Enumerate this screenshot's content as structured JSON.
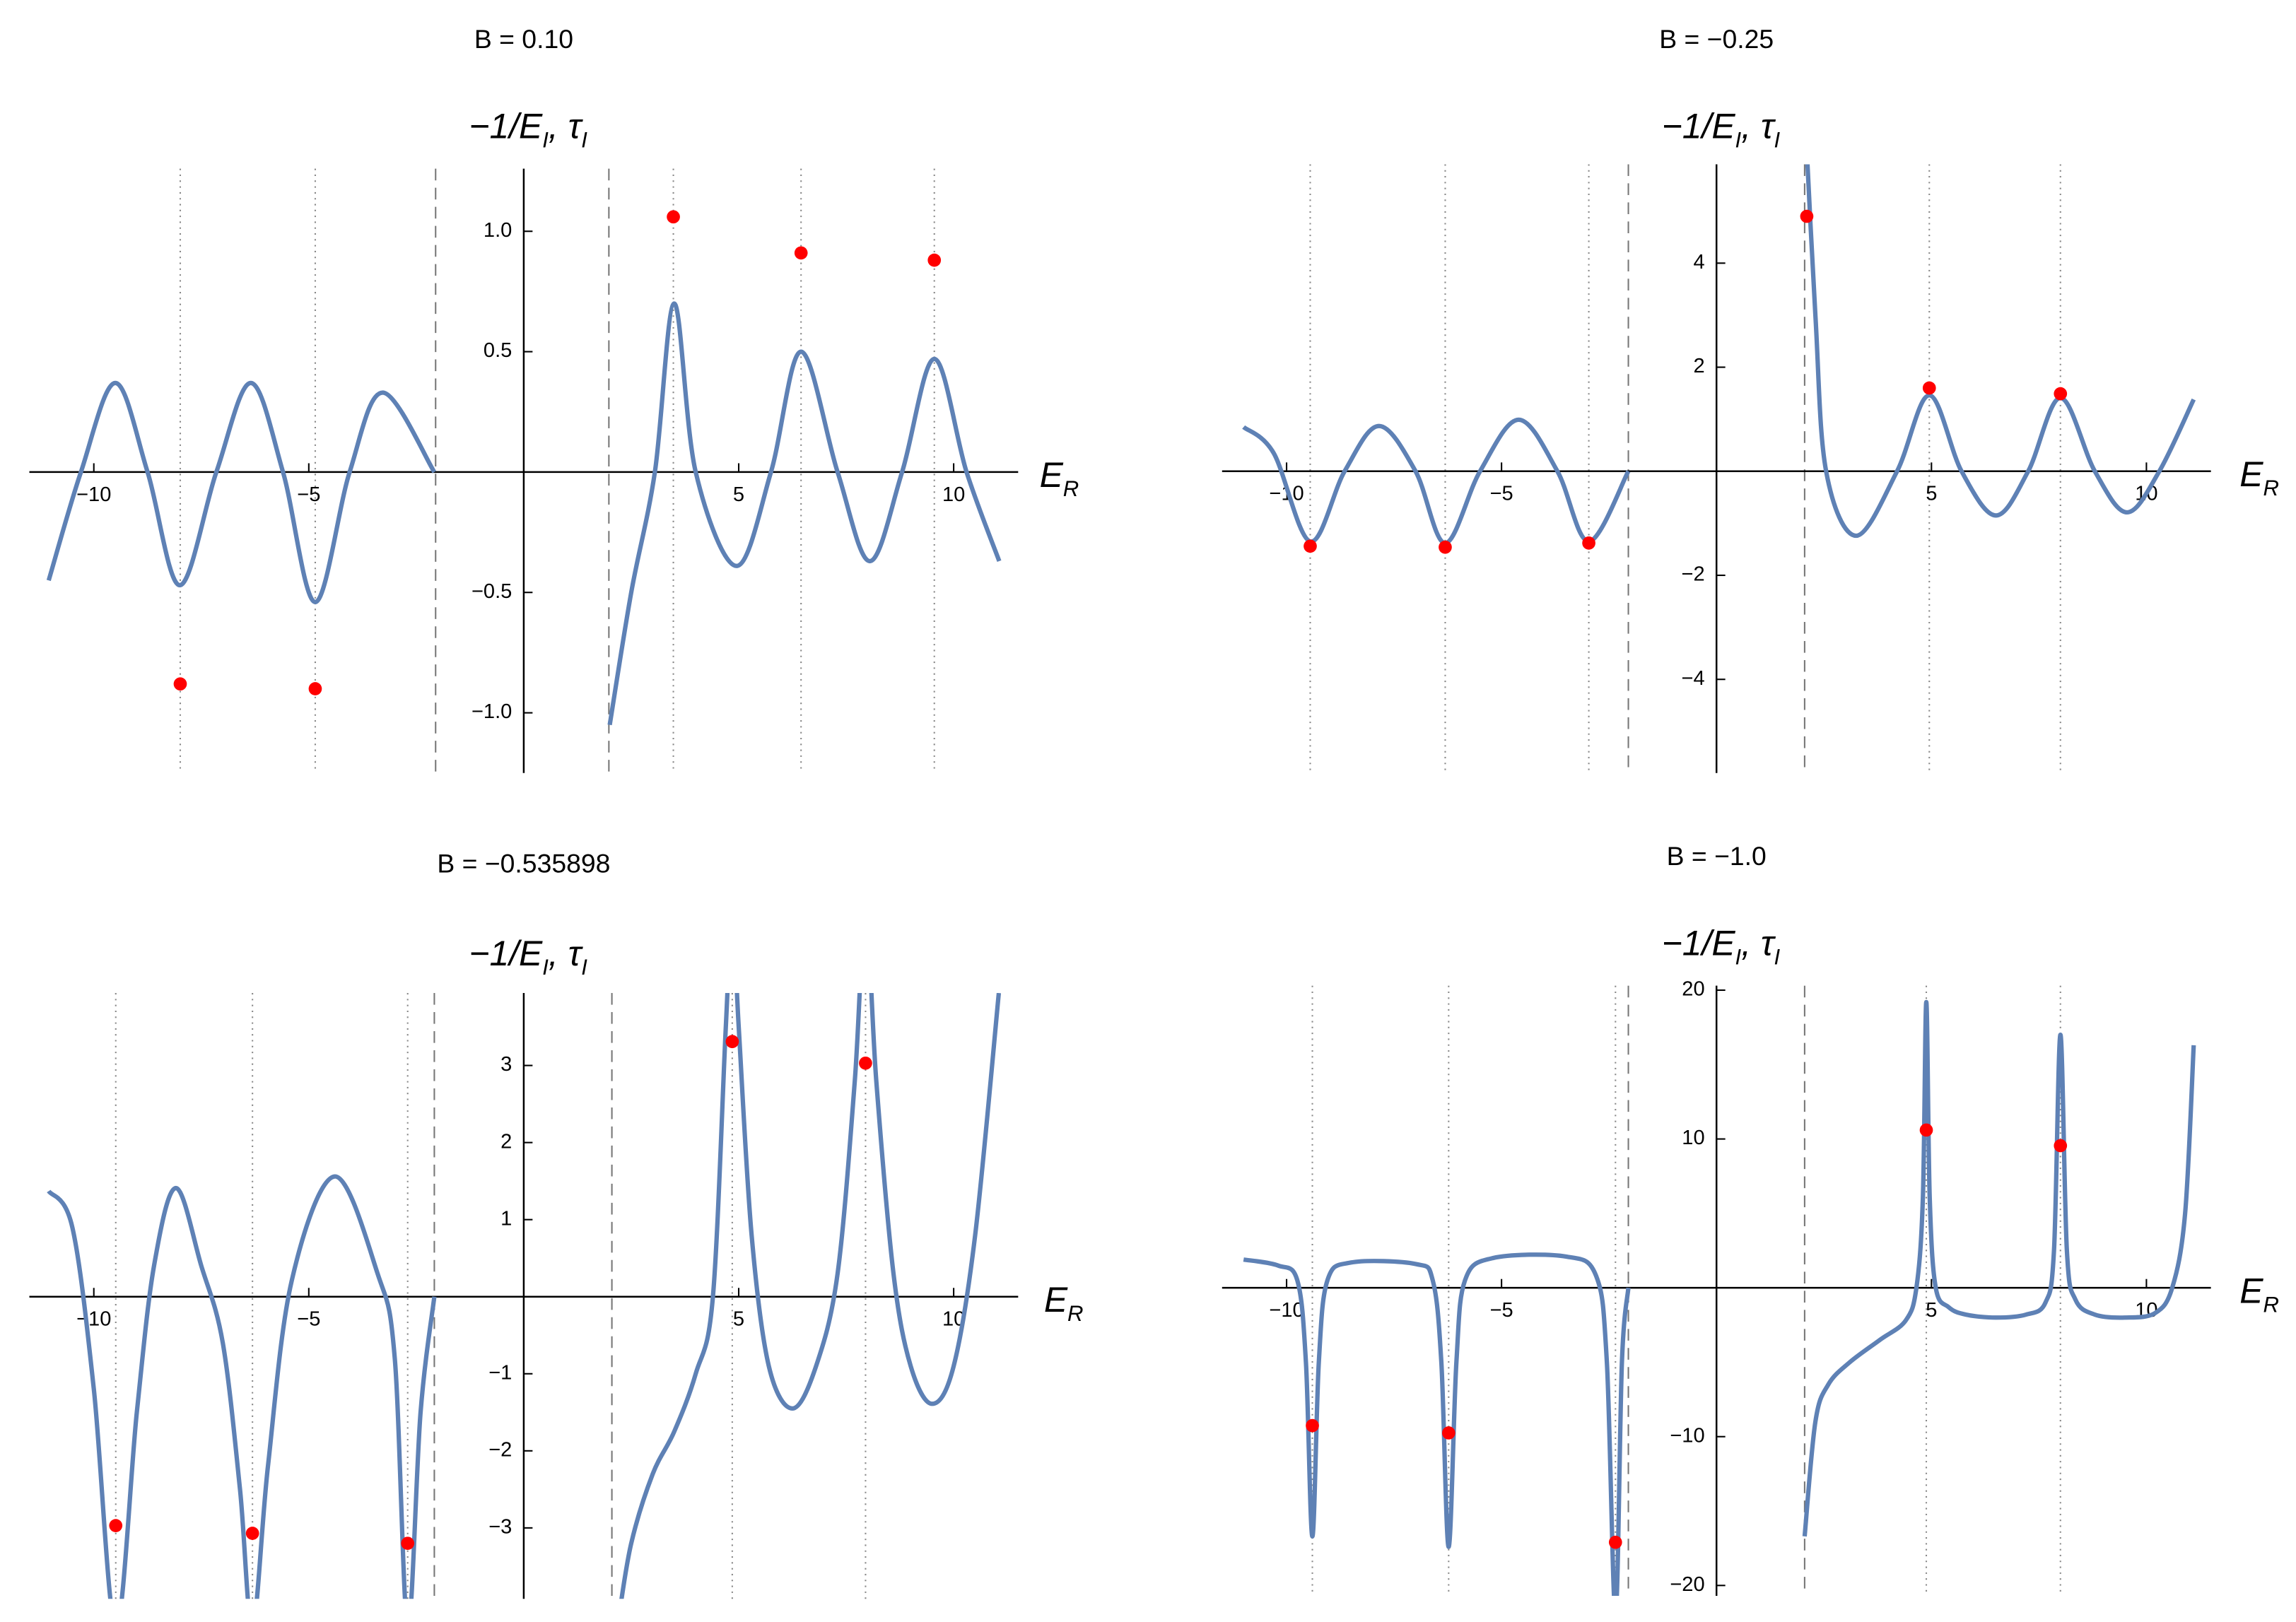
{
  "chart_data": [
    {
      "type": "line",
      "title": "B = 0.10",
      "y_label": {
        "parts": [
          "−1/E",
          "I",
          ",  τ",
          "I"
        ]
      },
      "x_label": {
        "parts": [
          "E",
          "R"
        ]
      },
      "xlim": [
        -11.5,
        11.5
      ],
      "ylim": [
        -1.25,
        1.26
      ],
      "xticks": [
        {
          "value": -10,
          "label": "−10"
        },
        {
          "value": -5,
          "label": "−5"
        },
        5,
        10
      ],
      "yticks": [
        {
          "value": -1,
          "label": "−1.0"
        },
        {
          "value": -0.5,
          "label": "−0.5"
        },
        0.5,
        {
          "value": 1,
          "label": "1.0"
        }
      ],
      "series": [
        {
          "color": "#5e81b5",
          "x": [
            -11.05,
            -10.3,
            -9.5,
            -8.75,
            -8.0,
            -7.15,
            -6.35,
            -5.6,
            -4.85,
            -4.05,
            -3.28,
            -2.08,
            null,
            2.0,
            2.5,
            3.05,
            3.5,
            4.0,
            4.95,
            5.75,
            6.45,
            7.3,
            8.05,
            8.8,
            9.55,
            10.3,
            11.06
          ],
          "values": [
            -0.45,
            0,
            0.37,
            0,
            -0.47,
            0,
            0.37,
            0,
            -0.54,
            0,
            0.33,
            0,
            null,
            -1.05,
            -0.5,
            0,
            0.7,
            0,
            -0.39,
            0,
            0.5,
            0,
            -0.37,
            0,
            0.47,
            0,
            -0.37
          ]
        }
      ],
      "points": {
        "color": "#ff0000",
        "x": [
          -7.99,
          -4.85,
          3.48,
          6.45,
          9.55
        ],
        "values": [
          -0.88,
          -0.9,
          1.06,
          0.91,
          0.88
        ]
      },
      "dotted_x": [
        -7.99,
        -4.85,
        3.48,
        6.45,
        9.55
      ],
      "dashed_x": [
        -2.05,
        1.98
      ]
    },
    {
      "type": "line",
      "title": "B = −0.25",
      "y_label": {
        "parts": [
          "−1/E",
          "I",
          ",  τ",
          "I"
        ]
      },
      "x_label": {
        "parts": [
          "E",
          "R"
        ]
      },
      "xlim": [
        -11.5,
        11.5
      ],
      "ylim": [
        -5.8,
        5.9
      ],
      "xticks": [
        {
          "value": -10,
          "label": "−10"
        },
        {
          "value": -5,
          "label": "−5"
        },
        5,
        10
      ],
      "yticks": [
        {
          "value": -4,
          "label": "−4"
        },
        {
          "value": -2,
          "label": "−2"
        },
        2,
        4
      ],
      "series": [
        {
          "color": "#5e81b5",
          "x": [
            -11.0,
            -10.3,
            -9.45,
            -8.65,
            -7.85,
            -7.0,
            -6.31,
            -5.5,
            -4.6,
            -3.7,
            -2.97,
            -2.05,
            null,
            2.05,
            2.3,
            2.55,
            3.25,
            4.2,
            4.95,
            5.7,
            6.5,
            7.25,
            8.0,
            8.8,
            9.55,
            10.3,
            11.1
          ],
          "values": [
            0.85,
            0.35,
            -1.35,
            0,
            0.87,
            0,
            -1.38,
            0,
            0.99,
            0,
            -1.35,
            0,
            null,
            7,
            3,
            0,
            -1.24,
            0,
            1.46,
            0,
            -0.85,
            0,
            1.41,
            0,
            -0.79,
            0,
            1.38
          ]
        }
      ],
      "points": {
        "color": "#ff0000",
        "x": [
          -9.45,
          -6.31,
          -2.97,
          2.1,
          4.95,
          8.0
        ],
        "values": [
          -1.44,
          -1.46,
          -1.38,
          4.9,
          1.6,
          1.49
        ]
      },
      "dotted_x": [
        -9.45,
        -6.31,
        -2.97,
        4.95,
        8.0
      ],
      "dashed_x": [
        -2.05,
        2.05
      ]
    },
    {
      "type": "line",
      "title": "B = −0.535898",
      "y_label": {
        "parts": [
          "−1/E",
          "I",
          ",  τ",
          "I"
        ]
      },
      "x_label": {
        "parts": [
          "E",
          "R"
        ]
      },
      "xlim": [
        -11.5,
        11.5
      ],
      "ylim": [
        -3.92,
        3.94
      ],
      "xticks": [
        {
          "value": -10,
          "label": "−10"
        },
        {
          "value": -5,
          "label": "−5"
        },
        5,
        10
      ],
      "yticks": [
        {
          "value": -3,
          "label": "−3"
        },
        {
          "value": -2,
          "label": "−2"
        },
        {
          "value": -1,
          "label": "−1"
        },
        1,
        2,
        3
      ],
      "series": [
        {
          "color": "#5e81b5",
          "x": [
            -11.05,
            -10.5,
            -10.0,
            -9.49,
            -9.0,
            -8.6,
            -8.09,
            -7.5,
            -7.0,
            -6.6,
            -6.31,
            -5.95,
            -5.4,
            -4.4,
            -3.4,
            -3.0,
            -2.7,
            -2.4,
            -2.08,
            null,
            2.2,
            2.5,
            3.0,
            3.5,
            4.0,
            4.4,
            4.7,
            4.85,
            5.0,
            5.3,
            5.7,
            6.25,
            6.8,
            7.3,
            7.7,
            7.95,
            8.2,
            8.6,
            9.0,
            9.5,
            10.0,
            10.5,
            11.05
          ],
          "values": [
            1.37,
            0.9,
            -1.2,
            -4.3,
            -1.5,
            0.4,
            1.41,
            0.4,
            -0.6,
            -2.5,
            -4.3,
            -2.2,
            0.2,
            1.56,
            0.3,
            -0.8,
            -4.3,
            -1.5,
            0,
            null,
            -4.2,
            -3.2,
            -2.3,
            -1.75,
            -1.0,
            0,
            3.5,
            5,
            3.5,
            0.8,
            -0.9,
            -1.45,
            -0.9,
            0.3,
            2.8,
            5,
            2.8,
            0.3,
            -0.9,
            -1.39,
            -0.9,
            0.8,
            3.94
          ]
        }
      ],
      "points": {
        "color": "#ff0000",
        "x": [
          -9.49,
          -6.31,
          -2.7,
          4.85,
          7.95
        ],
        "values": [
          -2.97,
          -3.07,
          -3.2,
          3.31,
          3.03
        ]
      },
      "dotted_x": [
        -9.49,
        -6.31,
        -2.7,
        4.85,
        7.95
      ],
      "dashed_x": [
        -2.08,
        2.05
      ]
    },
    {
      "type": "line",
      "title": "B = −1.0",
      "y_label": {
        "parts": [
          "−1/E",
          "I",
          ",  τ",
          "I"
        ]
      },
      "x_label": {
        "parts": [
          "E",
          "R"
        ]
      },
      "xlim": [
        -11.5,
        11.5
      ],
      "ylim": [
        -20.7,
        20.3
      ],
      "xticks": [
        {
          "value": -10,
          "label": "−10"
        },
        {
          "value": -5,
          "label": "−5"
        },
        5,
        10
      ],
      "yticks": [
        {
          "value": -20,
          "label": "−20"
        },
        {
          "value": -10,
          "label": "−10"
        },
        10,
        20
      ],
      "series": [
        {
          "color": "#5e81b5",
          "x": [
            -11.0,
            -10.2,
            -9.75,
            -9.55,
            -9.4,
            -9.25,
            -9.05,
            -8.5,
            -7.0,
            -6.6,
            -6.4,
            -6.23,
            -6.05,
            -5.85,
            -5.2,
            -3.5,
            -2.8,
            -2.55,
            -2.35,
            -2.2,
            -2.05,
            null,
            2.05,
            2.3,
            2.6,
            3.1,
            3.8,
            4.4,
            4.65,
            4.8,
            4.88,
            4.96,
            5.1,
            5.4,
            5.8,
            6.5,
            7.2,
            7.65,
            7.85,
            8.0,
            8.15,
            8.35,
            8.8,
            9.5,
            10.2,
            10.6,
            10.9,
            11.1
          ],
          "values": [
            1.9,
            1.5,
            0.5,
            -5,
            -16.7,
            -5,
            0.5,
            1.7,
            1.6,
            0.5,
            -5,
            -17.4,
            -5,
            0.5,
            2.0,
            2.1,
            0.8,
            -5,
            -22,
            -5,
            0,
            null,
            -16.7,
            -9,
            -6.5,
            -5,
            -3.5,
            -2.2,
            0,
            6,
            19.2,
            6,
            0,
            -1.3,
            -1.8,
            -2.0,
            -1.8,
            -1,
            2.5,
            17,
            2.5,
            -0.8,
            -1.8,
            -2.0,
            -1.7,
            0,
            5,
            16.3
          ]
        }
      ],
      "points": {
        "color": "#ff0000",
        "x": [
          -9.4,
          -6.23,
          -2.35,
          4.88,
          8.0
        ],
        "values": [
          -9.26,
          -9.75,
          -17.1,
          10.6,
          9.55
        ]
      },
      "dotted_x": [
        -9.4,
        -6.23,
        -2.35,
        4.88,
        8.0
      ],
      "dashed_x": [
        -2.05,
        2.05
      ]
    }
  ]
}
